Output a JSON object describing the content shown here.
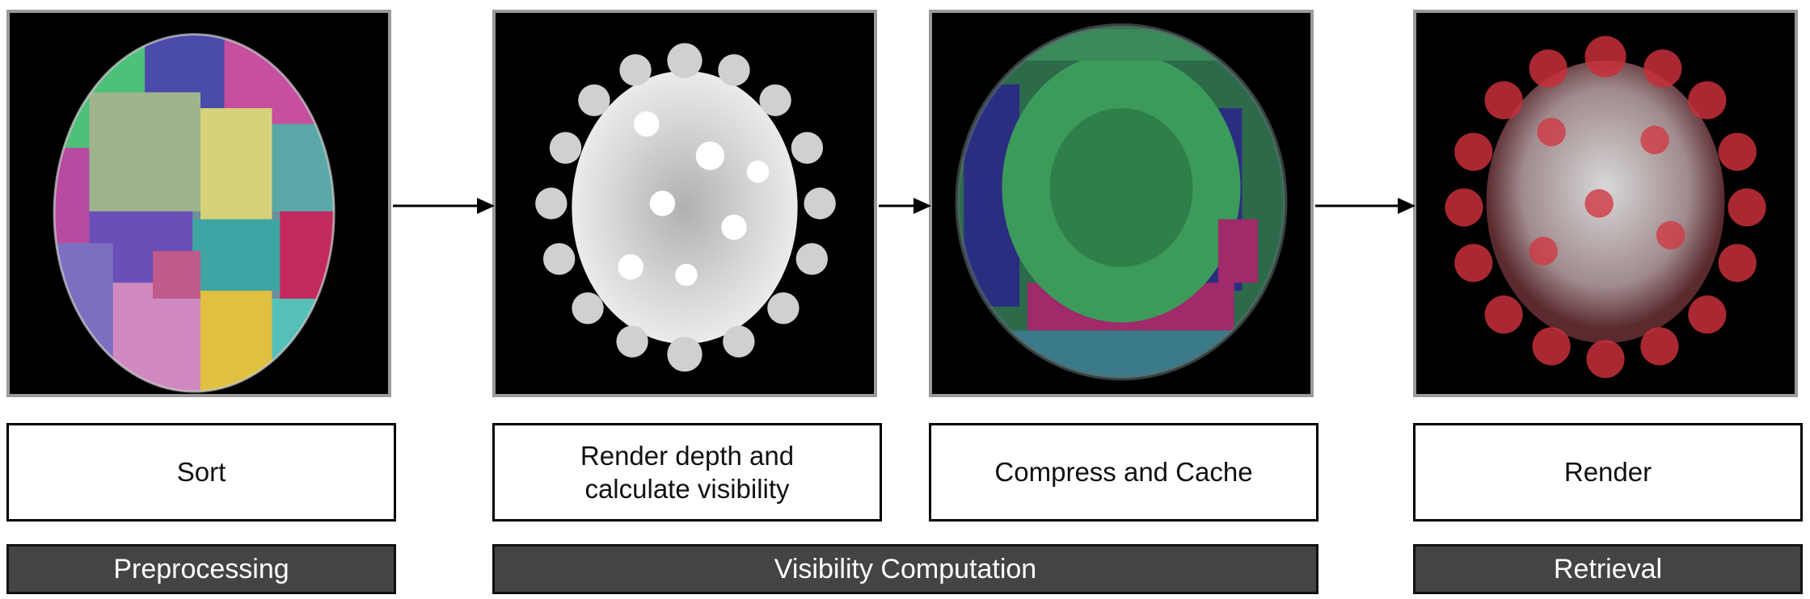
{
  "steps": [
    {
      "label": "Sort"
    },
    {
      "label": "Render depth and\ncalculate visibility"
    },
    {
      "label": "Compress and Cache"
    },
    {
      "label": "Render"
    }
  ],
  "stages": [
    {
      "label": "Preprocessing"
    },
    {
      "label": "Visibility Computation"
    },
    {
      "label": "Retrieval"
    }
  ],
  "colors": {
    "panel_border": "#9a9a9a",
    "stage_fill": "#444444",
    "retrieval_red": "#c8303a",
    "cache_green": "#3c9a5a",
    "cache_blue": "#2a2e80",
    "cache_magenta": "#a02a6a"
  }
}
